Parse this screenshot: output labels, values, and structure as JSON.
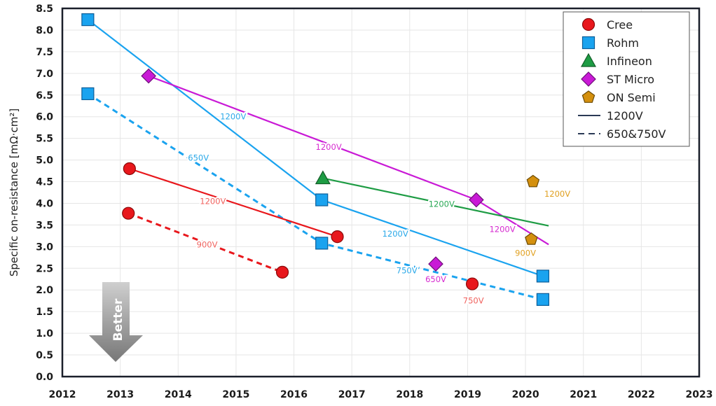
{
  "chart_data": {
    "type": "scatter",
    "title": "",
    "xlabel": "",
    "ylabel": "Specific on-resistance [mΩ·cm²]",
    "xlim": [
      2012,
      2023
    ],
    "ylim": [
      0.0,
      8.5
    ],
    "xticks": [
      "2012",
      "2013",
      "2014",
      "2015",
      "2016",
      "2017",
      "2018",
      "2019",
      "2020",
      "2021",
      "2022",
      "2023"
    ],
    "yticks": [
      "0.0",
      "0.5",
      "1.0",
      "1.5",
      "2.0",
      "2.5",
      "3.0",
      "3.5",
      "4.0",
      "4.5",
      "5.0",
      "5.5",
      "6.0",
      "6.5",
      "7.0",
      "7.5",
      "8.0",
      "8.5"
    ],
    "grid": true,
    "legend_position": "top-right",
    "legend": [
      {
        "label": "Cree",
        "marker": "circle",
        "color": "#e8171c"
      },
      {
        "label": "Rohm",
        "marker": "square",
        "color": "#1aa3ef"
      },
      {
        "label": "Infineon",
        "marker": "triangle",
        "color": "#1e9c44"
      },
      {
        "label": "ST Micro",
        "marker": "diamond",
        "color": "#c91ad6"
      },
      {
        "label": "ON Semi",
        "marker": "pentagon",
        "color": "#d4900e"
      },
      {
        "label": "1200V",
        "line": "solid",
        "color": "#2b3a55"
      },
      {
        "label": "650&750V",
        "line": "dashed",
        "color": "#2b3a55"
      }
    ],
    "series": [
      {
        "name": "Rohm 1200V",
        "company": "Rohm",
        "marker": "square",
        "color": "#1aa3ef",
        "line": "solid",
        "points": [
          [
            2012.44,
            8.24
          ],
          [
            2016.48,
            4.08
          ],
          [
            2020.3,
            2.32
          ]
        ],
        "label": {
          "text": "1200V",
          "at": [
            2014.95,
            6.0
          ],
          "color": "#2aa8e8"
        }
      },
      {
        "name": "Rohm 650/750V",
        "company": "Rohm",
        "marker": "square",
        "color": "#1aa3ef",
        "line": "dashed",
        "points": [
          [
            2012.44,
            6.53
          ],
          [
            2016.48,
            3.08
          ],
          [
            2020.3,
            1.78
          ]
        ],
        "labels": [
          {
            "text": "650V",
            "at": [
              2014.35,
              5.05
            ],
            "color": "#2aa8e8"
          },
          {
            "text": "750V",
            "at": [
              2017.95,
              2.45
            ],
            "color": "#2aa8e8"
          }
        ]
      },
      {
        "name": "Rohm 1200V (gen3 segment)",
        "company": "Rohm",
        "marker": "none",
        "color": "#1aa3ef",
        "line": "solid",
        "points": [],
        "label": {
          "text": "1200V",
          "at": [
            2017.75,
            3.3
          ],
          "color": "#2aa8e8"
        }
      },
      {
        "name": "ST Micro 1200V",
        "company": "ST Micro",
        "marker": "diamond",
        "color": "#c91ad6",
        "line": "solid",
        "points": [
          [
            2013.49,
            6.94
          ],
          [
            2019.15,
            4.08
          ]
        ],
        "line_end": [
          2020.4,
          3.05
        ],
        "labels": [
          {
            "text": "1200V",
            "at": [
              2016.6,
              5.3
            ],
            "color": "#d62bd0"
          },
          {
            "text": "1200V",
            "at": [
              2019.6,
              3.4
            ],
            "color": "#d62bd0"
          }
        ]
      },
      {
        "name": "ST Micro 650V",
        "company": "ST Micro",
        "marker": "diamond",
        "color": "#c91ad6",
        "line": "none",
        "points": [
          [
            2018.45,
            2.6
          ]
        ],
        "label": {
          "text": "650V",
          "at": [
            2018.45,
            2.25
          ],
          "color": "#d62bd0"
        }
      },
      {
        "name": "Cree 1200V",
        "company": "Cree",
        "marker": "circle",
        "color": "#e8171c",
        "line": "solid",
        "points": [
          [
            2013.16,
            4.8
          ],
          [
            2016.75,
            3.23
          ]
        ],
        "label": {
          "text": "1200V",
          "at": [
            2014.6,
            4.05
          ],
          "color": "#f0635f"
        }
      },
      {
        "name": "Cree 900V",
        "company": "Cree",
        "marker": "circle",
        "color": "#e8171c",
        "line": "dashed",
        "points": [
          [
            2013.14,
            3.77
          ],
          [
            2015.8,
            2.41
          ]
        ],
        "label": {
          "text": "900V",
          "at": [
            2014.5,
            3.05
          ],
          "color": "#f0635f"
        }
      },
      {
        "name": "Cree 750V",
        "company": "Cree",
        "marker": "circle",
        "color": "#e8171c",
        "line": "none",
        "points": [
          [
            2019.08,
            2.14
          ]
        ],
        "label": {
          "text": "750V",
          "at": [
            2019.1,
            1.75
          ],
          "color": "#f0635f"
        }
      },
      {
        "name": "Infineon 1200V",
        "company": "Infineon",
        "marker": "triangle",
        "color": "#1e9c44",
        "line": "solid",
        "points": [
          [
            2016.5,
            4.58
          ]
        ],
        "line_end": [
          2020.4,
          3.48
        ],
        "label": {
          "text": "1200V",
          "at": [
            2018.55,
            3.98
          ],
          "color": "#2aa855"
        }
      },
      {
        "name": "ON Semi 1200V",
        "company": "ON Semi",
        "marker": "pentagon",
        "color": "#d4900e",
        "line": "none",
        "points": [
          [
            2020.13,
            4.5
          ]
        ],
        "label": {
          "text": "1200V",
          "at": [
            2020.55,
            4.22
          ],
          "color": "#e0a020"
        }
      },
      {
        "name": "ON Semi 900V",
        "company": "ON Semi",
        "marker": "pentagon",
        "color": "#d4900e",
        "line": "none",
        "points": [
          [
            2020.1,
            3.17
          ]
        ],
        "label": {
          "text": "900V",
          "at": [
            2020.0,
            2.85
          ],
          "color": "#e0a020"
        }
      }
    ],
    "annotations": [
      {
        "text": "Better",
        "type": "down-arrow",
        "at": [
          2012.95,
          1.3
        ]
      }
    ]
  }
}
